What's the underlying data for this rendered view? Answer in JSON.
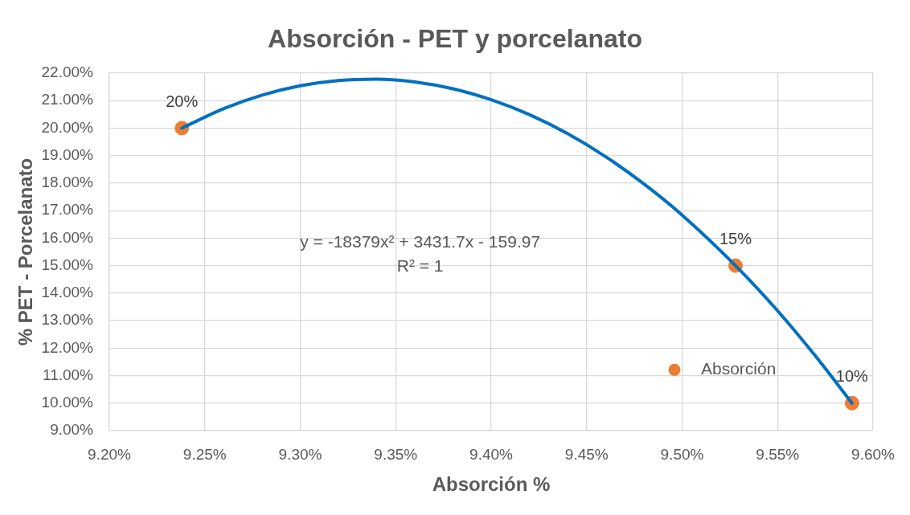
{
  "chart_data": {
    "type": "scatter",
    "title": "Absorción - PET y porcelanato",
    "xlabel": "Absorción %",
    "ylabel": "% PET - Porcelanato",
    "xlim": [
      9.2,
      9.6
    ],
    "xticks": [
      {
        "value": 9.2,
        "label": "9.20%"
      },
      {
        "value": 9.25,
        "label": "9.25%"
      },
      {
        "value": 9.3,
        "label": "9.30%"
      },
      {
        "value": 9.35,
        "label": "9.35%"
      },
      {
        "value": 9.4,
        "label": "9.40%"
      },
      {
        "value": 9.45,
        "label": "9.45%"
      },
      {
        "value": 9.5,
        "label": "9.50%"
      },
      {
        "value": 9.55,
        "label": "9.55%"
      },
      {
        "value": 9.6,
        "label": "9.60%"
      }
    ],
    "ylim": [
      9,
      22
    ],
    "yticks": [
      {
        "value": 9,
        "label": "9.00%"
      },
      {
        "value": 10,
        "label": "10.00%"
      },
      {
        "value": 11,
        "label": "11.00%"
      },
      {
        "value": 12,
        "label": "12.00%"
      },
      {
        "value": 13,
        "label": "13.00%"
      },
      {
        "value": 14,
        "label": "14.00%"
      },
      {
        "value": 15,
        "label": "15.00%"
      },
      {
        "value": 16,
        "label": "16.00%"
      },
      {
        "value": 17,
        "label": "17.00%"
      },
      {
        "value": 18,
        "label": "18.00%"
      },
      {
        "value": 19,
        "label": "19.00%"
      },
      {
        "value": 20,
        "label": "20.00%"
      },
      {
        "value": 21,
        "label": "21.00%"
      },
      {
        "value": 22,
        "label": "22.00%"
      }
    ],
    "grid": true,
    "legend": "bottom right",
    "marker": "circle",
    "series": [
      {
        "name": "Absorción",
        "color": "#ed7d31",
        "x": [
          9.238,
          9.528,
          9.589
        ],
        "values": [
          20,
          15,
          10
        ],
        "value_labels": [
          "20%",
          "15%",
          "10%"
        ]
      },
      {
        "type": "line",
        "marker": "none",
        "color": "#0070c0",
        "x": [
          9.238,
          9.26,
          9.28,
          9.3,
          9.32,
          9.34,
          9.36,
          9.38,
          9.4,
          9.42,
          9.44,
          9.46,
          9.48,
          9.5,
          9.528,
          9.55,
          9.57,
          9.589
        ],
        "values": [
          20,
          20.71,
          21.2,
          21.54,
          21.73,
          21.78,
          21.68,
          21.43,
          21.03,
          20.49,
          19.8,
          18.96,
          17.97,
          16.84,
          15,
          13.36,
          11.7,
          10
        ]
      }
    ],
    "annotations": [
      "y = -18379x² + 3431.7x - 159.97",
      "R² = 1"
    ]
  }
}
